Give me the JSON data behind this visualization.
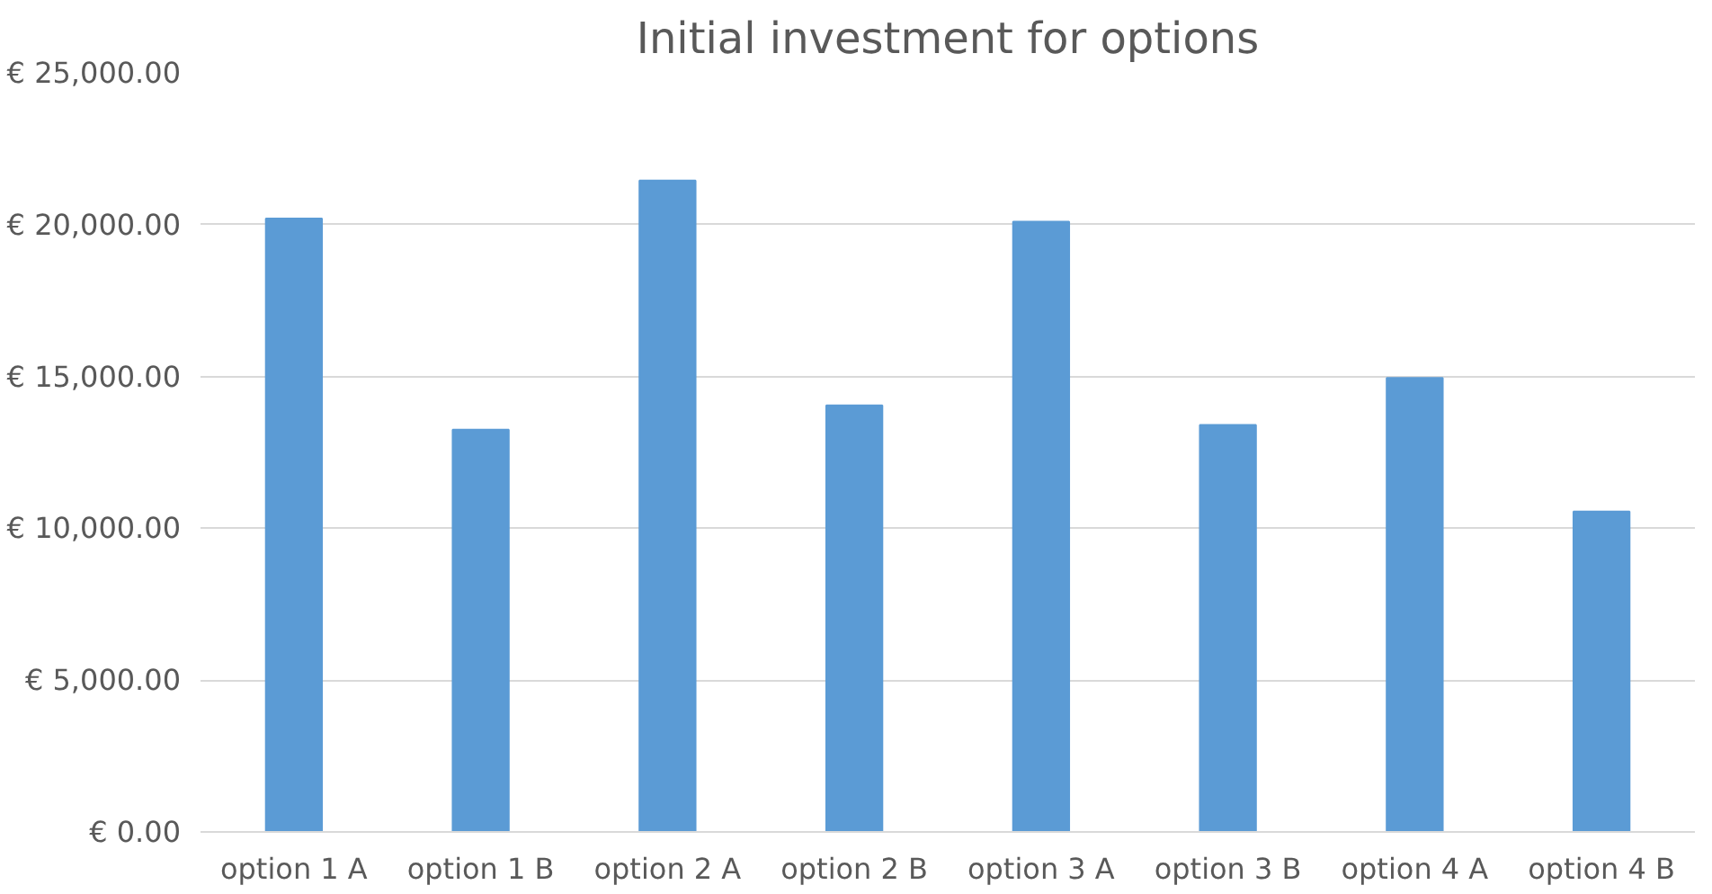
{
  "chart_data": {
    "type": "bar",
    "title": "Initial investment for options",
    "categories": [
      "option 1 A",
      "option 1 B",
      "option 2 A",
      "option 2 B",
      "option 3 A",
      "option 3 B",
      "option 4 A",
      "option 4 B"
    ],
    "values": [
      20200,
      13250,
      21450,
      14050,
      20100,
      13400,
      14950,
      10550
    ],
    "color": "#5b9bd5",
    "ylim": [
      0,
      25000
    ],
    "yticks": [
      {
        "value": 0,
        "label": "€ 0.00"
      },
      {
        "value": 5000,
        "label": "€ 5,000.00"
      },
      {
        "value": 10000,
        "label": "€ 10,000.00"
      },
      {
        "value": 15000,
        "label": "€ 15,000.00"
      },
      {
        "value": 20000,
        "label": "€ 20,000.00"
      },
      {
        "value": 25000,
        "label": "€ 25,000.00"
      }
    ],
    "grid": "y"
  }
}
